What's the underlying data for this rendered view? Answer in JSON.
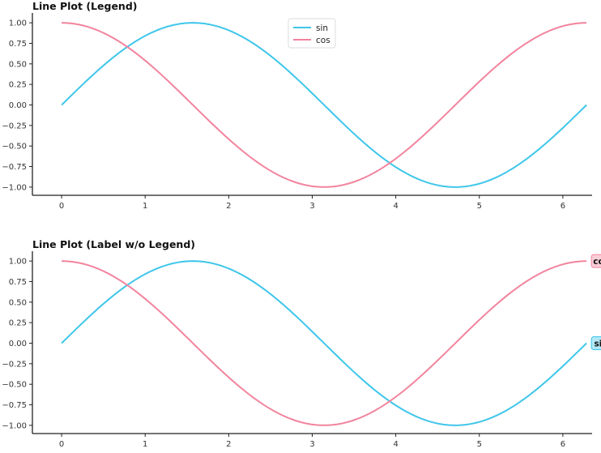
{
  "colors": {
    "sin": "#3ec6ea",
    "cos": "#f2849e"
  },
  "chart_data": [
    {
      "type": "line",
      "title": "Line Plot (Legend)",
      "x": {
        "start": 0,
        "end": 6.283185307,
        "samples": 100
      },
      "series": [
        {
          "name": "sin",
          "function": "sin",
          "color": "#3ec6ea"
        },
        {
          "name": "cos",
          "function": "cos",
          "color": "#f2849e"
        }
      ],
      "xlim": [
        -0.35,
        6.35
      ],
      "ylim": [
        -1.1,
        1.1
      ],
      "xticks": [
        0,
        1,
        2,
        3,
        4,
        5,
        6
      ],
      "xtick_labels": [
        "0",
        "1",
        "2",
        "3",
        "4",
        "5",
        "6"
      ],
      "yticks": [
        1.0,
        0.75,
        0.5,
        0.25,
        0.0,
        -0.25,
        -0.5,
        -0.75,
        -1.0
      ],
      "ytick_labels": [
        "1.00",
        "0.75",
        "0.50",
        "0.25",
        "0.00",
        "−0.25",
        "−0.50",
        "−0.75",
        "−1.00"
      ],
      "grid": false,
      "legend": {
        "placement": "upper-center",
        "entries": [
          "sin",
          "cos"
        ]
      }
    },
    {
      "type": "line",
      "title": "Line Plot (Label w/o Legend)",
      "x": {
        "start": 0,
        "end": 6.283185307,
        "samples": 100
      },
      "series": [
        {
          "name": "sin",
          "function": "sin",
          "color": "#3ec6ea"
        },
        {
          "name": "cos",
          "function": "cos",
          "color": "#f2849e"
        }
      ],
      "xlim": [
        -0.35,
        6.35
      ],
      "ylim": [
        -1.1,
        1.1
      ],
      "xticks": [
        0,
        1,
        2,
        3,
        4,
        5,
        6
      ],
      "xtick_labels": [
        "0",
        "1",
        "2",
        "3",
        "4",
        "5",
        "6"
      ],
      "yticks": [
        1.0,
        0.75,
        0.5,
        0.25,
        0.0,
        -0.25,
        -0.5,
        -0.75,
        -1.0
      ],
      "ytick_labels": [
        "1.00",
        "0.75",
        "0.50",
        "0.25",
        "0.00",
        "−0.25",
        "−0.50",
        "−0.75",
        "−1.00"
      ],
      "grid": false,
      "end_labels": [
        {
          "series": "cos",
          "text": "cos",
          "color": "#f2849e"
        },
        {
          "series": "sin",
          "text": "sin",
          "color": "#3ec6ea"
        }
      ]
    }
  ]
}
